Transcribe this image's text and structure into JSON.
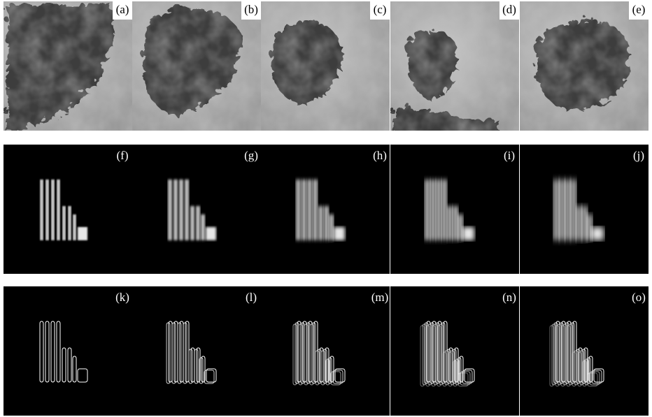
{
  "panels": [
    [
      "(a)",
      "(b)",
      "(c)",
      "(d)",
      "(e)"
    ],
    [
      "(f)",
      "(g)",
      "(h)",
      "(i)",
      "(j)"
    ],
    [
      "(k)",
      "(l)",
      "(m)",
      "(n)",
      "(o)"
    ]
  ]
}
